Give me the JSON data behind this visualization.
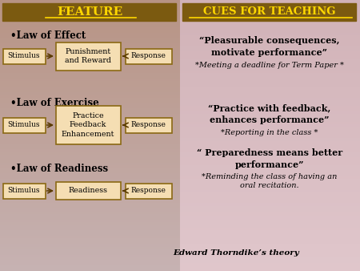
{
  "title_left": "FEATURE",
  "title_right": "CUES FOR TEACHING",
  "box_bg": "#F5DEB3",
  "box_border": "#8B6914",
  "law1": "•Law of Effect",
  "law2": "•Law of Exercise",
  "law3": "•Law of Readiness",
  "box1_center": "Punishment\nand Reward",
  "box2_center": "Practice\nFeedback\nEnhancement",
  "box3_center": "Readiness",
  "cue1_bold": "“Pleasurable consequences,\nmotivate performance”",
  "cue1_italic": "*Meeting a deadline for Term Paper *",
  "cue2_bold": "“Practice with feedback,\nenhances performance”",
  "cue2_italic": "*Reporting in the class *",
  "cue3_bold": "“ Preparedness means better\nperformance”",
  "cue3_italic": "*Reminding the class of having an\noral recitation.",
  "footer": "Edward Thorndike’s theory",
  "stimulus_label": "Stimulus",
  "response_label": "Response",
  "header_gold": "#FFD700",
  "header_dark": "#7B5A10",
  "arrow_color": "#5A3A00"
}
